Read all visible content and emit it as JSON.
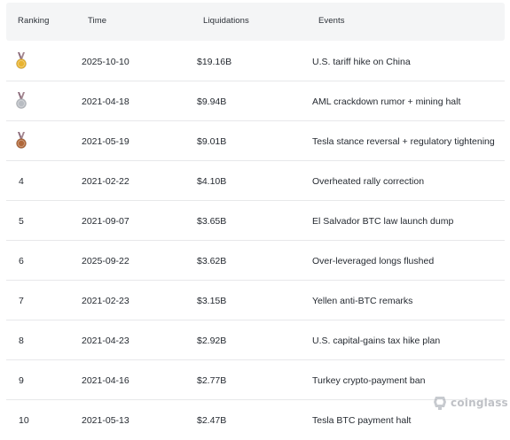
{
  "headers": {
    "ranking": "Ranking",
    "time": "Time",
    "liquidations": "Liquidations",
    "events": "Events"
  },
  "rows": [
    {
      "rank": "",
      "medal": "gold-medal-icon",
      "time": "2025-10-10",
      "liquidations": "$19.16B",
      "event": "U.S. tariff hike on China"
    },
    {
      "rank": "",
      "medal": "silver-medal-icon",
      "time": "2021-04-18",
      "liquidations": "$9.94B",
      "event": "AML crackdown rumor + mining halt"
    },
    {
      "rank": "",
      "medal": "bronze-medal-icon",
      "time": "2021-05-19",
      "liquidations": "$9.01B",
      "event": "Tesla stance reversal + regulatory tightening"
    },
    {
      "rank": "4",
      "medal": "",
      "time": "2021-02-22",
      "liquidations": "$4.10B",
      "event": "Overheated rally correction"
    },
    {
      "rank": "5",
      "medal": "",
      "time": "2021-09-07",
      "liquidations": "$3.65B",
      "event": "El Salvador BTC law launch dump"
    },
    {
      "rank": "6",
      "medal": "",
      "time": "2025-09-22",
      "liquidations": "$3.62B",
      "event": "Over-leveraged longs flushed"
    },
    {
      "rank": "7",
      "medal": "",
      "time": "2021-02-23",
      "liquidations": "$3.15B",
      "event": "Yellen anti-BTC remarks"
    },
    {
      "rank": "8",
      "medal": "",
      "time": "2021-04-23",
      "liquidations": "$2.92B",
      "event": "U.S. capital-gains tax hike plan"
    },
    {
      "rank": "9",
      "medal": "",
      "time": "2021-04-16",
      "liquidations": "$2.77B",
      "event": "Turkey crypto-payment ban"
    },
    {
      "rank": "10",
      "medal": "",
      "time": "2021-05-13",
      "liquidations": "$2.47B",
      "event": "Tesla BTC payment halt"
    }
  ],
  "colors": {
    "gold": "#e8b330",
    "silver": "#b8bcc2",
    "bronze": "#b0683a",
    "ribbon": "#8a6a7a"
  },
  "watermark": {
    "text": "coinglass",
    "icon": "coinglass-logo-icon"
  }
}
